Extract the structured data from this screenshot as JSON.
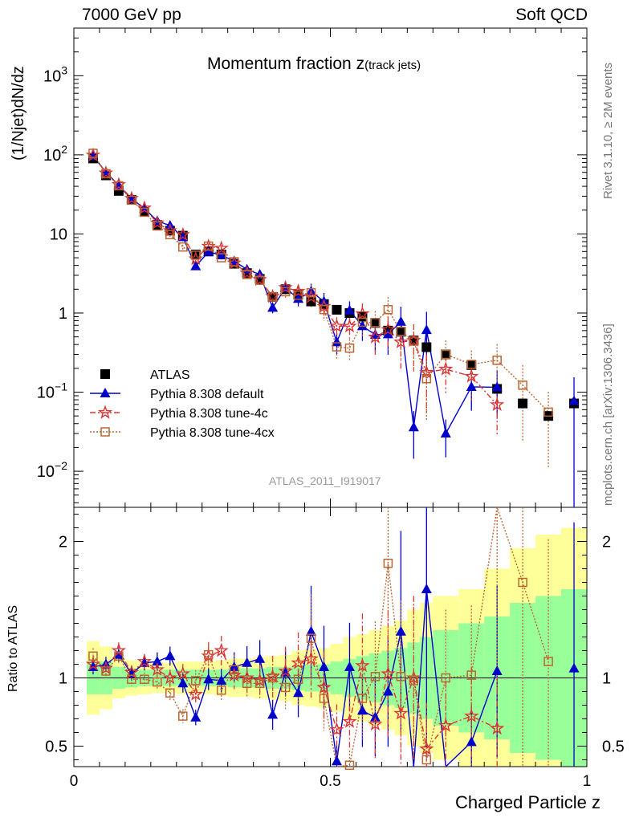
{
  "header": {
    "left": "7000 GeV pp",
    "right": "Soft QCD"
  },
  "title": {
    "main": "Momentum fraction z",
    "sub": "(track jets)"
  },
  "side_labels": {
    "rivet": "Rivet 3.1.10, ≥ 2M events",
    "mcplots": "mcplots.cern.ch [arXiv:1306.3436]"
  },
  "analysis_id": "ATLAS_2011_I919017",
  "chart_data": {
    "type": "scatter",
    "xlabel": "Charged Particle z",
    "ylabel": "(1/Njet)dN/dz",
    "ratio_ylabel": "Ratio to ATLAS",
    "xlim": [
      0,
      1
    ],
    "ylim": [
      0.0035,
      4000
    ],
    "ratio_ylim": [
      0.35,
      2.25
    ],
    "log_y": true,
    "legend_position": "lower-left",
    "x_ticks": [
      "0",
      "0.5",
      "1"
    ],
    "y_ticks": [
      "10^-2",
      "10^-1",
      "1",
      "10",
      "10^2",
      "10^3"
    ],
    "ratio_ticks": [
      "0.5",
      "1",
      "2"
    ],
    "x": [
      0.0375,
      0.0625,
      0.0875,
      0.1125,
      0.1375,
      0.1625,
      0.1875,
      0.2125,
      0.2375,
      0.2625,
      0.2875,
      0.3125,
      0.3375,
      0.3625,
      0.3875,
      0.4125,
      0.4375,
      0.4625,
      0.4875,
      0.5125,
      0.5375,
      0.5625,
      0.5875,
      0.6125,
      0.6375,
      0.6625,
      0.6875,
      0.725,
      0.775,
      0.825,
      0.875,
      0.925,
      0.975
    ],
    "bin_width": [
      0.025,
      0.025,
      0.025,
      0.025,
      0.025,
      0.025,
      0.025,
      0.025,
      0.025,
      0.025,
      0.025,
      0.025,
      0.025,
      0.025,
      0.025,
      0.025,
      0.025,
      0.025,
      0.025,
      0.025,
      0.025,
      0.025,
      0.025,
      0.025,
      0.025,
      0.025,
      0.025,
      0.05,
      0.05,
      0.05,
      0.05,
      0.05,
      0.05
    ],
    "band_inner": [
      0.12,
      0.12,
      0.08,
      0.07,
      0.06,
      0.06,
      0.06,
      0.06,
      0.06,
      0.06,
      0.06,
      0.07,
      0.07,
      0.07,
      0.08,
      0.08,
      0.09,
      0.1,
      0.1,
      0.12,
      0.14,
      0.16,
      0.18,
      0.2,
      0.22,
      0.26,
      0.3,
      0.35,
      0.4,
      0.45,
      0.55,
      0.6,
      0.65
    ],
    "band_outer": [
      0.27,
      0.23,
      0.15,
      0.13,
      0.12,
      0.11,
      0.11,
      0.12,
      0.12,
      0.12,
      0.13,
      0.14,
      0.14,
      0.15,
      0.16,
      0.17,
      0.2,
      0.21,
      0.22,
      0.25,
      0.3,
      0.32,
      0.35,
      0.38,
      0.42,
      0.5,
      0.55,
      0.6,
      0.65,
      0.8,
      0.95,
      1.05,
      1.1
    ],
    "series": [
      {
        "name": "ATLAS",
        "color": "#000000",
        "marker": "square-filled",
        "line": "none",
        "values": [
          90,
          55,
          35,
          27,
          19,
          13,
          11,
          9.5,
          5.5,
          6.0,
          5.5,
          4.2,
          3.2,
          2.7,
          1.6,
          2.0,
          1.7,
          1.4,
          1.3,
          1.1,
          1.0,
          0.9,
          0.75,
          0.6,
          0.58,
          0.45,
          0.37,
          0.3,
          0.22,
          0.11,
          0.072,
          0.05,
          0.072
        ]
      },
      {
        "name": "Pythia 8.308 default",
        "color": "#0000cc",
        "marker": "triangle-filled",
        "line": "solid",
        "ratio": [
          1.08,
          1.1,
          1.17,
          1.03,
          1.11,
          1.12,
          1.16,
          0.96,
          0.71,
          0.99,
          0.98,
          1.08,
          1.11,
          1.14,
          0.73,
          1.04,
          0.89,
          1.34,
          1.08,
          0.39,
          1.08,
          0.76,
          0.71,
          0.9,
          1.34,
          0.08,
          1.65,
          0.1,
          0.53,
          1.05,
          null,
          null,
          1.07
        ],
        "ratio_err": [
          0.05,
          0.05,
          0.05,
          0.05,
          0.05,
          0.06,
          0.06,
          0.07,
          0.08,
          0.08,
          0.09,
          0.1,
          0.11,
          0.12,
          0.15,
          0.17,
          0.2,
          0.25,
          0.28,
          0.3,
          0.3,
          0.35,
          0.4,
          0.45,
          0.55,
          0.6,
          0.7,
          0.5,
          0.5,
          0.6,
          null,
          null,
          1.0
        ]
      },
      {
        "name": "Pythia 8.308 tune-4c",
        "color": "#dd3333",
        "marker": "star-open",
        "line": "dashdot",
        "ratio": [
          1.1,
          1.07,
          1.2,
          1.04,
          1.12,
          1.06,
          1.0,
          1.03,
          0.88,
          1.16,
          1.2,
          1.02,
          1.0,
          0.98,
          1.01,
          1.05,
          1.11,
          1.14,
          0.93,
          0.62,
          0.68,
          1.09,
          0.66,
          1.03,
          0.74,
          1.0,
          0.48,
          0.65,
          0.72,
          0.63,
          null,
          null,
          null
        ],
        "ratio_err": [
          0.05,
          0.05,
          0.05,
          0.05,
          0.05,
          0.06,
          0.06,
          0.07,
          0.08,
          0.08,
          0.09,
          0.1,
          0.11,
          0.12,
          0.15,
          0.17,
          0.2,
          0.25,
          0.28,
          0.3,
          0.3,
          0.35,
          0.4,
          0.45,
          0.55,
          0.6,
          0.7,
          0.5,
          0.5,
          0.6,
          null,
          null,
          null
        ]
      },
      {
        "name": "Pythia 8.308 tune-4cx",
        "color": "#bb6633",
        "marker": "square-open",
        "line": "dotted",
        "ratio": [
          1.16,
          1.05,
          1.16,
          0.99,
          0.99,
          0.97,
          0.89,
          0.72,
          0.98,
          1.17,
          0.91,
          1.06,
          0.96,
          0.96,
          1.0,
          0.93,
          0.99,
          1.29,
          0.85,
          0.34,
          0.36,
          0.85,
          1.01,
          1.84,
          1.01,
          0.98,
          0.4,
          1.0,
          1.02,
          2.3,
          1.7,
          1.12,
          null
        ],
        "ratio_err": [
          0.05,
          0.05,
          0.05,
          0.05,
          0.05,
          0.06,
          0.06,
          0.07,
          0.08,
          0.08,
          0.09,
          0.1,
          0.11,
          0.12,
          0.15,
          0.17,
          0.2,
          0.25,
          0.28,
          0.3,
          0.3,
          0.35,
          0.4,
          0.45,
          0.55,
          0.6,
          0.7,
          0.5,
          0.5,
          0.6,
          0.8,
          0.8,
          null
        ]
      }
    ]
  }
}
